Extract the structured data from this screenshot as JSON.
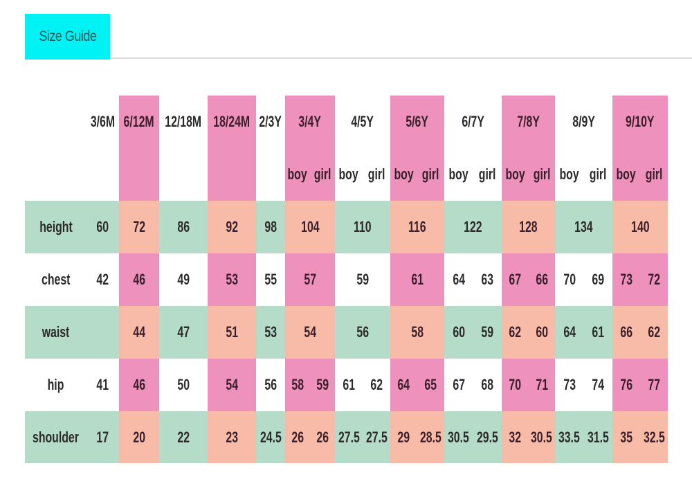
{
  "tab": {
    "label": "Size Guide",
    "color": "#00f2f5"
  },
  "colors": {
    "header_pink": "#ee91bc",
    "row_green": "#b4dcc8",
    "row_peach": "#f8bba8"
  },
  "table": {
    "sizes": [
      "3/6M",
      "6/12M",
      "12/18M",
      "18/24M",
      "2/3Y",
      "3/4Y",
      "4/5Y",
      "5/6Y",
      "6/7Y",
      "7/8Y",
      "8/9Y",
      "9/10Y"
    ],
    "sub_headers": {
      "boy": "boy",
      "girl": "girl"
    },
    "rows": [
      {
        "label": "height",
        "values": [
          [
            "60"
          ],
          [
            "72"
          ],
          [
            "86"
          ],
          [
            "92"
          ],
          [
            "98"
          ],
          [
            "104"
          ],
          [
            "110"
          ],
          [
            "116"
          ],
          [
            "122"
          ],
          [
            "128"
          ],
          [
            "134"
          ],
          [
            "140"
          ]
        ]
      },
      {
        "label": "chest",
        "values": [
          [
            "42"
          ],
          [
            "46"
          ],
          [
            "49"
          ],
          [
            "53"
          ],
          [
            "55"
          ],
          [
            "57"
          ],
          [
            "59"
          ],
          [
            "61"
          ],
          [
            "64",
            "63"
          ],
          [
            "67",
            "66"
          ],
          [
            "70",
            "69"
          ],
          [
            "73",
            "72"
          ]
        ]
      },
      {
        "label": "waist",
        "values": [
          [
            ""
          ],
          [
            "44"
          ],
          [
            "47"
          ],
          [
            "51"
          ],
          [
            "53"
          ],
          [
            "54"
          ],
          [
            "56"
          ],
          [
            "58"
          ],
          [
            "60",
            "59"
          ],
          [
            "62",
            "60"
          ],
          [
            "64",
            "61"
          ],
          [
            "66",
            "62"
          ]
        ]
      },
      {
        "label": "hip",
        "values": [
          [
            "41"
          ],
          [
            "46"
          ],
          [
            "50"
          ],
          [
            "54"
          ],
          [
            "56"
          ],
          [
            "58",
            "59"
          ],
          [
            "61",
            "62"
          ],
          [
            "64",
            "65"
          ],
          [
            "67",
            "68"
          ],
          [
            "70",
            "71"
          ],
          [
            "73",
            "74"
          ],
          [
            "76",
            "77"
          ]
        ]
      },
      {
        "label": "shoulder",
        "values": [
          [
            "17"
          ],
          [
            "20"
          ],
          [
            "22"
          ],
          [
            "23"
          ],
          [
            "24.5"
          ],
          [
            "26",
            "26"
          ],
          [
            "27.5",
            "27.5"
          ],
          [
            "29",
            "28.5"
          ],
          [
            "30.5",
            "29.5"
          ],
          [
            "32",
            "30.5"
          ],
          [
            "33.5",
            "31.5"
          ],
          [
            "35",
            "32.5"
          ]
        ]
      }
    ]
  }
}
